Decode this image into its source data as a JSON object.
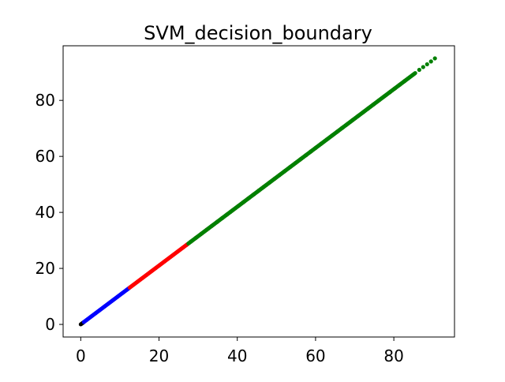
{
  "chart_data": {
    "type": "scatter",
    "title": "SVM_decision_boundary",
    "xlabel": "",
    "ylabel": "",
    "xlim": [
      -4.5,
      95.5
    ],
    "ylim": [
      -4.5,
      99.5
    ],
    "xticks": [
      0,
      20,
      40,
      60,
      80
    ],
    "yticks": [
      0,
      20,
      40,
      60,
      80
    ],
    "tick_labels_x": [
      "0",
      "20",
      "40",
      "60",
      "80"
    ],
    "tick_labels_y": [
      "0",
      "20",
      "40",
      "60",
      "80"
    ],
    "grid": false,
    "legend": "none",
    "series": [
      {
        "color": "#000000",
        "x_range": [
          0,
          0.8
        ],
        "slope": 1.05
      },
      {
        "color": "#0000ff",
        "x_range": [
          0.8,
          12.5
        ],
        "slope": 1.05
      },
      {
        "color": "#ff0000",
        "x_range": [
          12.5,
          27.5
        ],
        "slope": 1.05
      },
      {
        "color": "#ff0000",
        "x_range": [
          27.5,
          83.5
        ],
        "slope": 1.05,
        "mixed": true
      },
      {
        "color": "#008000",
        "x_range": [
          27.5,
          85.5
        ],
        "slope": 1.05
      },
      {
        "color": "#008000",
        "points": [
          [
            86.5,
            90.9
          ],
          [
            87.5,
            91.9
          ],
          [
            88.5,
            92.9
          ],
          [
            89.5,
            93.9
          ],
          [
            90.5,
            95.0
          ]
        ]
      }
    ]
  }
}
